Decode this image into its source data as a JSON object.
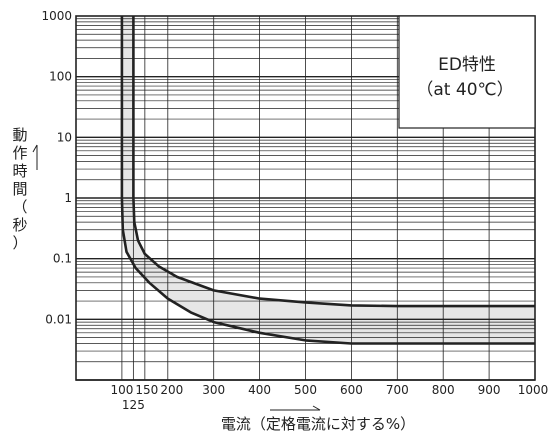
{
  "chart_data": {
    "type": "line",
    "title": "ED特性",
    "subtitle": "（at 40℃）",
    "xlabel": "電流（定格電流に対する%）",
    "ylabel": "動作時間（秒）",
    "x_scale": "linear",
    "y_scale": "log",
    "xlim": [
      0,
      1000
    ],
    "ylim": [
      0.001,
      1000
    ],
    "grid": true,
    "legend": "top-right",
    "x_ticks": [
      {
        "value": 100,
        "label": "100"
      },
      {
        "value": 125,
        "label": "125"
      },
      {
        "value": 150,
        "label": "150"
      },
      {
        "value": 200,
        "label": "200"
      },
      {
        "value": 300,
        "label": "300"
      },
      {
        "value": 400,
        "label": "400"
      },
      {
        "value": 500,
        "label": "500"
      },
      {
        "value": 600,
        "label": "600"
      },
      {
        "value": 700,
        "label": "700"
      },
      {
        "value": 800,
        "label": "800"
      },
      {
        "value": 900,
        "label": "900"
      },
      {
        "value": 1000,
        "label": "1000"
      }
    ],
    "y_ticks": [
      {
        "value": 1000,
        "label": "1000"
      },
      {
        "value": 100,
        "label": "100"
      },
      {
        "value": 10,
        "label": "10"
      },
      {
        "value": 1,
        "label": "1"
      },
      {
        "value": 0.1,
        "label": "0.1"
      },
      {
        "value": 0.01,
        "label": "0.01"
      }
    ],
    "series": [
      {
        "x": [
          125,
          125,
          125,
          127,
          135,
          150,
          180,
          220,
          300,
          400,
          500,
          600,
          700,
          800,
          900,
          1000
        ],
        "y": [
          1000,
          10,
          1,
          0.4,
          0.2,
          0.12,
          0.075,
          0.05,
          0.03,
          0.022,
          0.019,
          0.017,
          0.0165,
          0.0165,
          0.0165,
          0.0165
        ]
      },
      {
        "x": [
          100,
          100,
          100,
          102,
          110,
          130,
          160,
          200,
          250,
          300,
          400,
          500,
          600,
          700,
          800,
          900,
          1000
        ],
        "y": [
          1000,
          10,
          1,
          0.3,
          0.13,
          0.07,
          0.04,
          0.022,
          0.013,
          0.009,
          0.006,
          0.0045,
          0.004,
          0.004,
          0.004,
          0.004,
          0.004
        ]
      }
    ],
    "colors": {
      "curve": "#222222",
      "band_fill": "#e6e6e6",
      "grid": "#222222"
    }
  }
}
